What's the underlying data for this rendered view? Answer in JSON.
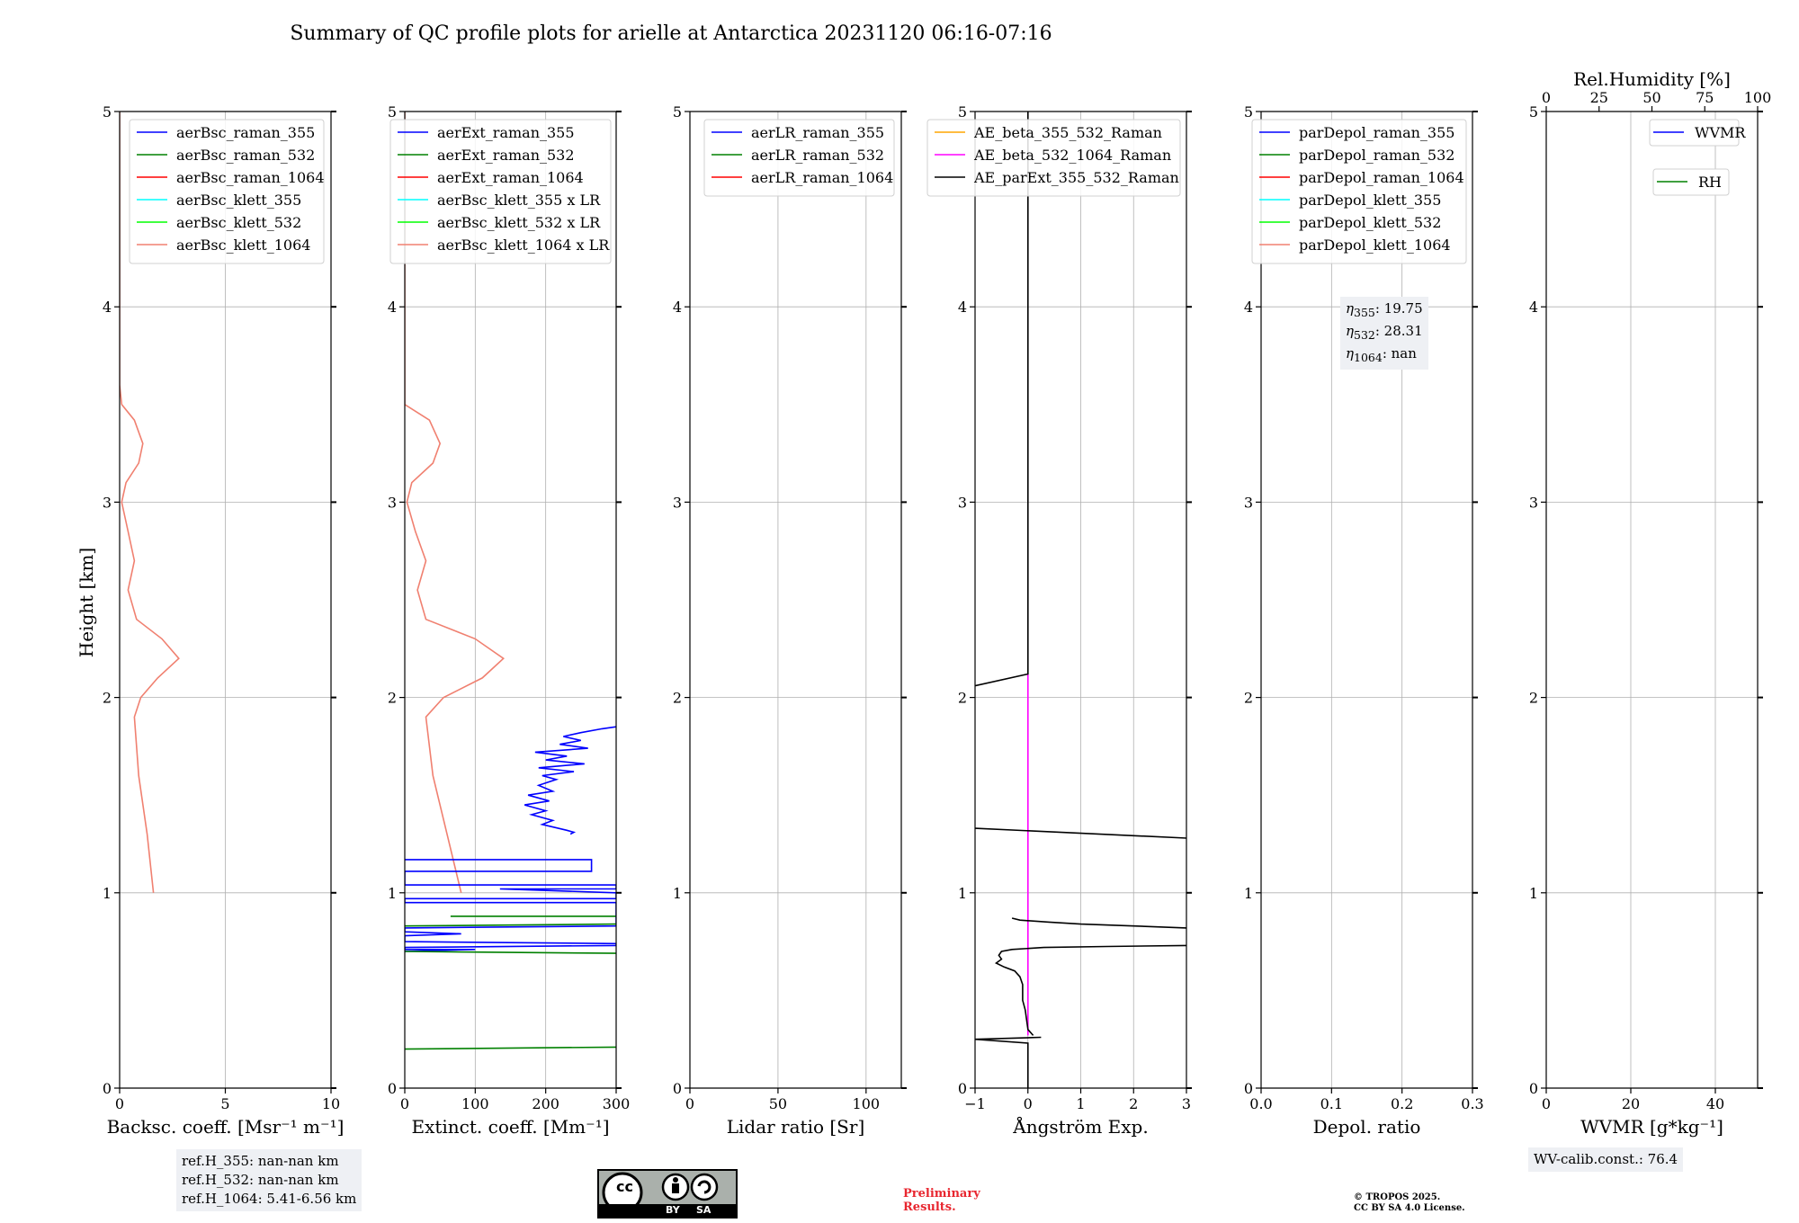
{
  "title": "Summary of QC profile plots for arielle at Antarctica 20231120 06:16-07:16",
  "ylabel": "Height [km]",
  "chart_data": [
    {
      "id": "bsc",
      "type": "line",
      "xlabel": "Backsc. coeff. [Msr⁻¹ m⁻¹]",
      "xlim": [
        0,
        10
      ],
      "ylim": [
        0,
        5
      ],
      "xticks": [
        "0",
        "5",
        "10"
      ],
      "yticks": [
        "0",
        "1",
        "2",
        "3",
        "4",
        "5"
      ],
      "grid": true,
      "legend_position": "top-right",
      "legend": [
        {
          "label": "aerBsc_raman_355",
          "color": "#0000ff"
        },
        {
          "label": "aerBsc_raman_532",
          "color": "#008000"
        },
        {
          "label": "aerBsc_raman_1064",
          "color": "#ff0000"
        },
        {
          "label": "aerBsc_klett_355",
          "color": "#00ffff"
        },
        {
          "label": "aerBsc_klett_532",
          "color": "#00ff00"
        },
        {
          "label": "aerBsc_klett_1064",
          "color": "#f08070"
        }
      ],
      "series": [
        {
          "name": "aerBsc_klett_1064",
          "color": "#f08070",
          "points": [
            [
              1.6,
              1.0
            ],
            [
              1.3,
              1.3
            ],
            [
              0.9,
              1.6
            ],
            [
              0.7,
              1.9
            ],
            [
              1.0,
              2.0
            ],
            [
              1.8,
              2.1
            ],
            [
              2.8,
              2.2
            ],
            [
              2.0,
              2.3
            ],
            [
              0.8,
              2.4
            ],
            [
              0.4,
              2.55
            ],
            [
              0.7,
              2.7
            ],
            [
              0.4,
              2.85
            ],
            [
              0.1,
              3.0
            ],
            [
              0.3,
              3.1
            ],
            [
              0.9,
              3.2
            ],
            [
              1.1,
              3.3
            ],
            [
              0.7,
              3.42
            ],
            [
              0.1,
              3.5
            ],
            [
              0.0,
              3.6
            ],
            [
              0.0,
              5.0
            ]
          ]
        }
      ]
    },
    {
      "id": "ext",
      "type": "line",
      "xlabel": "Extinct. coeff. [Mm⁻¹]",
      "xlim": [
        0,
        300
      ],
      "ylim": [
        0,
        5
      ],
      "xticks": [
        "0",
        "100",
        "200",
        "300"
      ],
      "yticks": [
        "0",
        "1",
        "2",
        "3",
        "4",
        "5"
      ],
      "grid": true,
      "legend_position": "top-right",
      "legend": [
        {
          "label": "aerExt_raman_355",
          "color": "#0000ff"
        },
        {
          "label": "aerExt_raman_532",
          "color": "#008000"
        },
        {
          "label": "aerExt_raman_1064",
          "color": "#ff0000"
        },
        {
          "label": "aerBsc_klett_355 x LR",
          "color": "#00ffff"
        },
        {
          "label": "aerBsc_klett_532 x LR",
          "color": "#00ff00"
        },
        {
          "label": "aerBsc_klett_1064 x LR",
          "color": "#f08070"
        }
      ],
      "series": [
        {
          "name": "aerBsc_klett_1064 x LR",
          "color": "#f08070",
          "points": [
            [
              80,
              1.0
            ],
            [
              60,
              1.3
            ],
            [
              40,
              1.6
            ],
            [
              30,
              1.9
            ],
            [
              55,
              2.0
            ],
            [
              110,
              2.1
            ],
            [
              140,
              2.2
            ],
            [
              100,
              2.3
            ],
            [
              30,
              2.4
            ],
            [
              18,
              2.55
            ],
            [
              30,
              2.7
            ],
            [
              15,
              2.85
            ],
            [
              3,
              3.0
            ],
            [
              10,
              3.1
            ],
            [
              40,
              3.2
            ],
            [
              50,
              3.3
            ],
            [
              35,
              3.42
            ],
            [
              0,
              3.5
            ],
            [
              0,
              5.0
            ]
          ]
        },
        {
          "name": "aerExt_raman_355",
          "color": "#0000ff",
          "points": [
            [
              300,
              1.85
            ],
            [
              280,
              1.84
            ],
            [
              250,
              1.82
            ],
            [
              225,
              1.8
            ],
            [
              250,
              1.78
            ],
            [
              220,
              1.76
            ],
            [
              260,
              1.74
            ],
            [
              185,
              1.72
            ],
            [
              230,
              1.7
            ],
            [
              200,
              1.68
            ],
            [
              255,
              1.66
            ],
            [
              190,
              1.64
            ],
            [
              240,
              1.62
            ],
            [
              195,
              1.6
            ],
            [
              215,
              1.58
            ],
            [
              190,
              1.55
            ],
            [
              210,
              1.52
            ],
            [
              175,
              1.5
            ],
            [
              205,
              1.47
            ],
            [
              170,
              1.45
            ],
            [
              200,
              1.42
            ],
            [
              180,
              1.4
            ],
            [
              210,
              1.37
            ],
            [
              195,
              1.35
            ],
            [
              230,
              1.32
            ],
            [
              240,
              1.31
            ],
            [
              235,
              1.3
            ]
          ]
        },
        {
          "name": "aerExt_raman_355",
          "color": "#0000ff",
          "points": [
            [
              0,
              1.17
            ],
            [
              265,
              1.17
            ],
            [
              265,
              1.11
            ],
            [
              0,
              1.11
            ],
            [
              0,
              1.04
            ],
            [
              300,
              1.04
            ],
            [
              300,
              1.02
            ],
            [
              135,
              1.02
            ],
            [
              300,
              1.0
            ],
            [
              300,
              0.97
            ],
            [
              0,
              0.97
            ],
            [
              0,
              0.95
            ],
            [
              300,
              0.95
            ],
            [
              300,
              0.83
            ],
            [
              0,
              0.82
            ],
            [
              0,
              0.8
            ],
            [
              80,
              0.79
            ],
            [
              0,
              0.78
            ],
            [
              0,
              0.75
            ],
            [
              300,
              0.74
            ],
            [
              300,
              0.73
            ],
            [
              0,
              0.72
            ],
            [
              0,
              0.71
            ],
            [
              100,
              0.71
            ],
            [
              0,
              0.7
            ]
          ]
        },
        {
          "name": "aerExt_raman_532",
          "color": "#008000",
          "points": [
            [
              65,
              0.88
            ],
            [
              300,
              0.88
            ]
          ]
        },
        {
          "name": "aerExt_raman_532",
          "color": "#008000",
          "points": [
            [
              0,
              0.83
            ],
            [
              300,
              0.84
            ]
          ]
        },
        {
          "name": "aerExt_raman_532",
          "color": "#008000",
          "points": [
            [
              0,
              0.7
            ],
            [
              300,
              0.69
            ]
          ]
        },
        {
          "name": "aerExt_raman_532",
          "color": "#008000",
          "points": [
            [
              0,
              0.2
            ],
            [
              300,
              0.21
            ]
          ]
        }
      ]
    },
    {
      "id": "lr",
      "type": "line",
      "xlabel": "Lidar ratio [Sr]",
      "xlim": [
        0,
        120
      ],
      "ylim": [
        0,
        5
      ],
      "xticks": [
        "0",
        "50",
        "100"
      ],
      "yticks": [
        "0",
        "1",
        "2",
        "3",
        "4",
        "5"
      ],
      "grid": true,
      "legend_position": "top-right",
      "legend": [
        {
          "label": "aerLR_raman_355",
          "color": "#0000ff"
        },
        {
          "label": "aerLR_raman_532",
          "color": "#008000"
        },
        {
          "label": "aerLR_raman_1064",
          "color": "#ff0000"
        }
      ],
      "series": []
    },
    {
      "id": "ae",
      "type": "line",
      "xlabel": "Ångström Exp.",
      "xlim": [
        -1,
        3
      ],
      "ylim": [
        0,
        5
      ],
      "xticks": [
        "−1",
        "0",
        "1",
        "2",
        "3"
      ],
      "yticks": [
        "0",
        "1",
        "2",
        "3",
        "4",
        "5"
      ],
      "grid": true,
      "legend_position": "top-right",
      "legend": [
        {
          "label": "AE_beta_355_532_Raman",
          "color": "#ffa500"
        },
        {
          "label": "AE_beta_532_1064_Raman",
          "color": "#ff00ff"
        },
        {
          "label": "AE_parExt_355_532_Raman",
          "color": "#000000"
        }
      ],
      "series": [
        {
          "name": "AE_beta_532_1064_Raman",
          "color": "#ff00ff",
          "points": [
            [
              0,
              0.27
            ],
            [
              0,
              2.12
            ]
          ]
        },
        {
          "name": "AE_parExt_355_532_Raman",
          "color": "#000000",
          "points": [
            [
              0,
              5.0
            ],
            [
              0,
              2.12
            ],
            [
              -1,
              2.06
            ]
          ]
        },
        {
          "name": "AE_parExt_355_532_Raman",
          "color": "#000000",
          "points": [
            [
              -1,
              1.33
            ],
            [
              3,
              1.28
            ]
          ]
        },
        {
          "name": "AE_parExt_355_532_Raman",
          "color": "#000000",
          "points": [
            [
              3,
              0.82
            ],
            [
              2,
              0.83
            ],
            [
              1,
              0.84
            ],
            [
              0.4,
              0.85
            ],
            [
              -0.15,
              0.86
            ],
            [
              -0.3,
              0.87
            ]
          ]
        },
        {
          "name": "AE_parExt_355_532_Raman",
          "color": "#000000",
          "points": [
            [
              3,
              0.73
            ],
            [
              1.5,
              0.725
            ],
            [
              0.3,
              0.72
            ],
            [
              -0.3,
              0.71
            ],
            [
              -0.5,
              0.7
            ],
            [
              -0.55,
              0.68
            ],
            [
              -0.5,
              0.66
            ],
            [
              -0.6,
              0.64
            ],
            [
              -0.45,
              0.62
            ],
            [
              -0.25,
              0.6
            ],
            [
              -0.15,
              0.57
            ],
            [
              -0.1,
              0.53
            ],
            [
              -0.1,
              0.45
            ],
            [
              -0.05,
              0.4
            ],
            [
              0,
              0.3
            ],
            [
              0.1,
              0.27
            ]
          ]
        },
        {
          "name": "AE_parExt_355_532_Raman",
          "color": "#000000",
          "points": [
            [
              0.25,
              0.26
            ],
            [
              -1,
              0.25
            ],
            [
              0,
              0.23
            ],
            [
              0,
              0
            ]
          ]
        }
      ]
    },
    {
      "id": "depol",
      "type": "line",
      "xlabel": "Depol. ratio",
      "xlim": [
        0,
        0.3
      ],
      "ylim": [
        0,
        5
      ],
      "xticks": [
        "0.0",
        "0.1",
        "0.2",
        "0.3"
      ],
      "yticks": [
        "0",
        "1",
        "2",
        "3",
        "4",
        "5"
      ],
      "grid": true,
      "legend_position": "top-right",
      "legend": [
        {
          "label": "parDepol_raman_355",
          "color": "#0000ff"
        },
        {
          "label": "parDepol_raman_532",
          "color": "#008000"
        },
        {
          "label": "parDepol_raman_1064",
          "color": "#ff0000"
        },
        {
          "label": "parDepol_klett_355",
          "color": "#00ffff"
        },
        {
          "label": "parDepol_klett_532",
          "color": "#00ff00"
        },
        {
          "label": "parDepol_klett_1064",
          "color": "#f08070"
        }
      ],
      "series": []
    },
    {
      "id": "wv",
      "type": "line",
      "xlabel": "WVMR [g*kg⁻¹]",
      "xlim": [
        0,
        50
      ],
      "ylim": [
        0,
        5
      ],
      "xticks": [
        "0",
        "20",
        "40"
      ],
      "yticks": [
        "0",
        "1",
        "2",
        "3",
        "4",
        "5"
      ],
      "top_xlabel": "Rel.Humidity [%]",
      "top_xlim": [
        0,
        100
      ],
      "top_xticks": [
        "0",
        "25",
        "50",
        "75",
        "100"
      ],
      "grid": true,
      "legend_position": "top-right",
      "legend": [
        {
          "label": "WVMR",
          "color": "#0000ff"
        },
        {
          "label": "RH",
          "color": "#008000"
        }
      ],
      "series": []
    }
  ],
  "annotations": {
    "ref_heights": [
      "ref.H_355: nan-nan km",
      "ref.H_532: nan-nan km",
      "ref.H_1064: 5.41-6.56 km"
    ],
    "eta_lines": [
      {
        "sub": "355",
        "value": ": 19.75"
      },
      {
        "sub": "532",
        "value": ": 28.31"
      },
      {
        "sub": "1064",
        "value": ": nan"
      }
    ],
    "wv_calib": "WV-calib.const.: 76.4",
    "preliminary": [
      "Preliminary",
      "Results."
    ],
    "copyright": [
      "© TROPOS 2025.",
      "CC BY SA 4.0 License."
    ],
    "license_badge": {
      "cc": "cc",
      "by": "BY",
      "sa": "SA"
    }
  },
  "colors": {
    "grid": "#b0b0b0",
    "box_bg": "#eef0f4",
    "preliminary": "#e8262f"
  }
}
